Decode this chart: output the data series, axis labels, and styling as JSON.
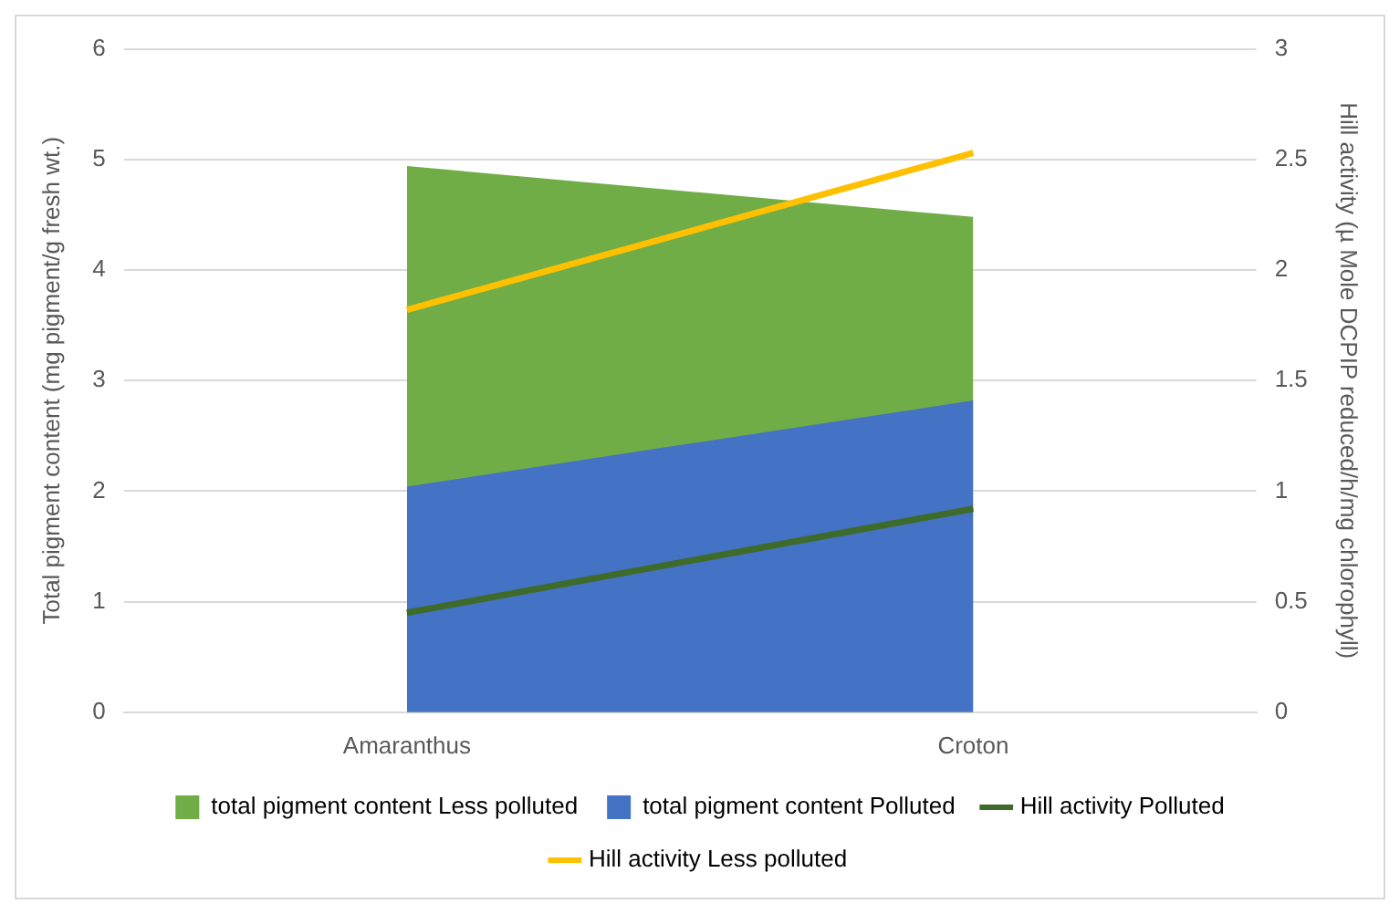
{
  "chart_data": {
    "type": "area",
    "categories": [
      "Amaranthus",
      "Croton"
    ],
    "ylabel": "Total pigment content (mg pigment/g fresh wt.)",
    "y2label": "Hill activity (µ Mole DCPIP reduced/h/mg chlorophyll)",
    "ylim": [
      0,
      6
    ],
    "yticks": [
      0,
      1,
      2,
      3,
      4,
      5,
      6
    ],
    "y2lim": [
      0,
      3
    ],
    "y2ticks": [
      0,
      0.5,
      1,
      1.5,
      2,
      2.5,
      3
    ],
    "grid": "y",
    "legend": "bottom",
    "marker": "none",
    "series": [
      {
        "name": "total pigment content Less polluted",
        "color": "#70ad47",
        "values": [
          4.94,
          4.48
        ]
      },
      {
        "name": "total pigment content Polluted",
        "color": "#4472c4",
        "values": [
          2.04,
          2.82
        ]
      },
      {
        "name": "Hill activity Polluted",
        "type": "line",
        "axis": "y2",
        "color": "#3f6b2a",
        "values": [
          0.45,
          0.92
        ]
      },
      {
        "name": "Hill activity Less polluted",
        "type": "line",
        "axis": "y2",
        "color": "#ffc000",
        "values": [
          1.82,
          2.53
        ]
      }
    ]
  }
}
